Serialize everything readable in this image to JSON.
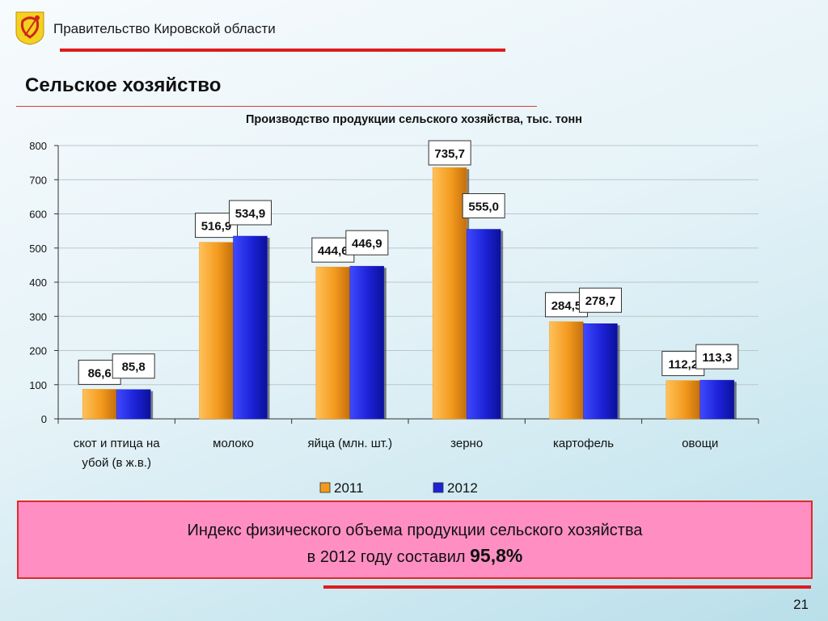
{
  "header": {
    "org_title": "Правительство Кировской области",
    "slide_title": "Сельское хозяйство",
    "emblem_icon": "kirov-coat-of-arms-icon"
  },
  "chart_data": {
    "type": "bar",
    "title": "Производство продукции сельского хозяйства, тыс. тонн",
    "categories": [
      "скот и птица на убой (в ж.в.)",
      "молоко",
      "яйца (млн. шт.)",
      "зерно",
      "картофель",
      "овощи"
    ],
    "series": [
      {
        "name": "2011",
        "values": [
          86.6,
          516.9,
          444.6,
          735.7,
          284.5,
          112.2
        ],
        "labels": [
          "86,6",
          "516,9",
          "444,6",
          "735,7",
          "284,5",
          "112,2"
        ],
        "color": "#f39a1e"
      },
      {
        "name": "2012",
        "values": [
          85.8,
          534.9,
          446.9,
          555.0,
          278.7,
          113.3
        ],
        "labels": [
          "85,8",
          "534,9",
          "446,9",
          "555,0",
          "278,7",
          "113,3"
        ],
        "color": "#1c22d6"
      }
    ],
    "ylim": [
      0,
      800
    ],
    "yticks": [
      0,
      100,
      200,
      300,
      400,
      500,
      600,
      700,
      800
    ],
    "grid": true,
    "legend": "bottom"
  },
  "index_box": {
    "line1": "Индекс физического объема продукции сельского хозяйства",
    "line2_prefix": "в 2012 году составил ",
    "value": "95,8%"
  },
  "footer": {
    "page_number": "21"
  }
}
